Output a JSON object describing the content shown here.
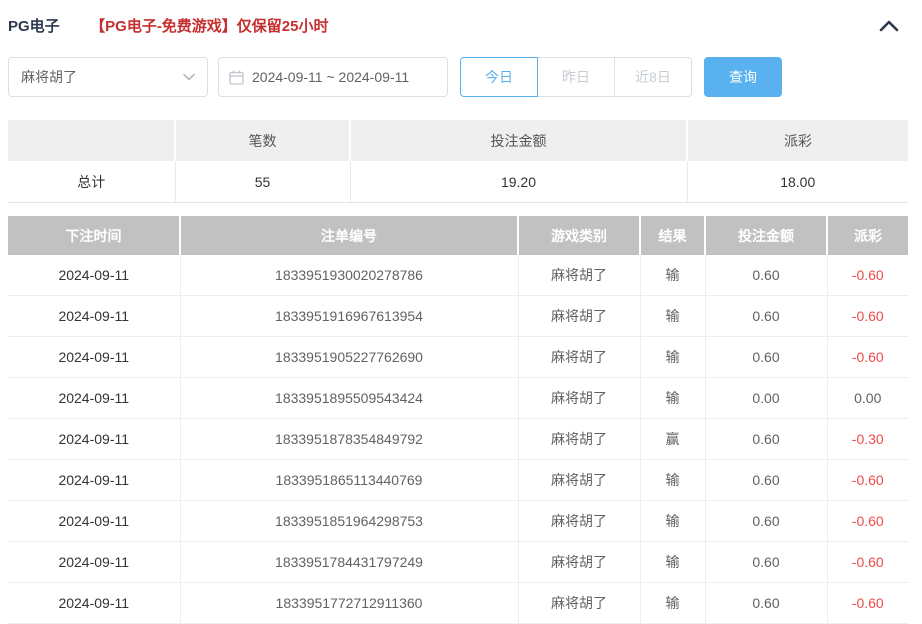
{
  "header": {
    "title": "PG电子",
    "notice": "【PG电子-免费游戏】仅保留25小时"
  },
  "filters": {
    "game_select": {
      "value": "麻将胡了"
    },
    "date_range": {
      "value": "2024-09-11 ~ 2024-09-11"
    },
    "quick_buttons": [
      {
        "label": "今日",
        "active": true
      },
      {
        "label": "昨日",
        "active": false
      },
      {
        "label": "近8日",
        "active": false
      }
    ],
    "search_label": "查询"
  },
  "summary": {
    "headers": [
      "",
      "笔数",
      "投注金额",
      "派彩"
    ],
    "total": {
      "label": "总计",
      "count": "55",
      "bet_amount": "19.20",
      "payout": "18.00"
    }
  },
  "bets": {
    "headers": [
      "下注时间",
      "注单编号",
      "游戏类别",
      "结果",
      "投注金额",
      "派彩"
    ],
    "rows": [
      [
        "2024-09-11",
        "1833951930020278786",
        "麻将胡了",
        "输",
        "0.60",
        "-0.60"
      ],
      [
        "2024-09-11",
        "1833951916967613954",
        "麻将胡了",
        "输",
        "0.60",
        "-0.60"
      ],
      [
        "2024-09-11",
        "1833951905227762690",
        "麻将胡了",
        "输",
        "0.60",
        "-0.60"
      ],
      [
        "2024-09-11",
        "1833951895509543424",
        "麻将胡了",
        "输",
        "0.00",
        "0.00"
      ],
      [
        "2024-09-11",
        "1833951878354849792",
        "麻将胡了",
        "赢",
        "0.60",
        "-0.30"
      ],
      [
        "2024-09-11",
        "1833951865113440769",
        "麻将胡了",
        "输",
        "0.60",
        "-0.60"
      ],
      [
        "2024-09-11",
        "1833951851964298753",
        "麻将胡了",
        "输",
        "0.60",
        "-0.60"
      ],
      [
        "2024-09-11",
        "1833951784431797249",
        "麻将胡了",
        "输",
        "0.60",
        "-0.60"
      ],
      [
        "2024-09-11",
        "1833951772712911360",
        "麻将胡了",
        "输",
        "0.60",
        "-0.60"
      ]
    ]
  },
  "icons": {
    "collapse": "chevron-up-icon",
    "select_caret": "chevron-down-icon",
    "calendar": "calendar-icon"
  },
  "colors": {
    "accent_blue": "#5ab1ef",
    "notice_red": "#c62f2f",
    "negative_red": "#ef4949",
    "bets_header_gray": "#c1c1c1",
    "summary_header_gray": "#efefef"
  }
}
